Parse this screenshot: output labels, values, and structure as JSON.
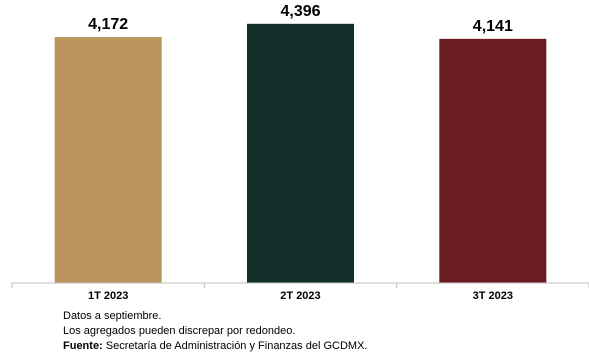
{
  "chart_data": {
    "type": "bar",
    "categories": [
      "1T 2023",
      "2T 2023",
      "3T 2023"
    ],
    "values": [
      4172,
      4396,
      4141
    ],
    "value_labels": [
      "4,172",
      "4,396",
      "4,141"
    ],
    "colors": [
      "#bb955e",
      "#13312a",
      "#6a1c22"
    ],
    "ylim": [
      0,
      4800
    ],
    "grid": false,
    "legend": "none"
  },
  "notes": {
    "line1": "Datos a septiembre.",
    "line2": "Los agregados pueden discrepar por redondeo.",
    "source_label": "Fuente:",
    "source_text": "Secretaría de Administración y  Finanzas del GCDMX."
  }
}
